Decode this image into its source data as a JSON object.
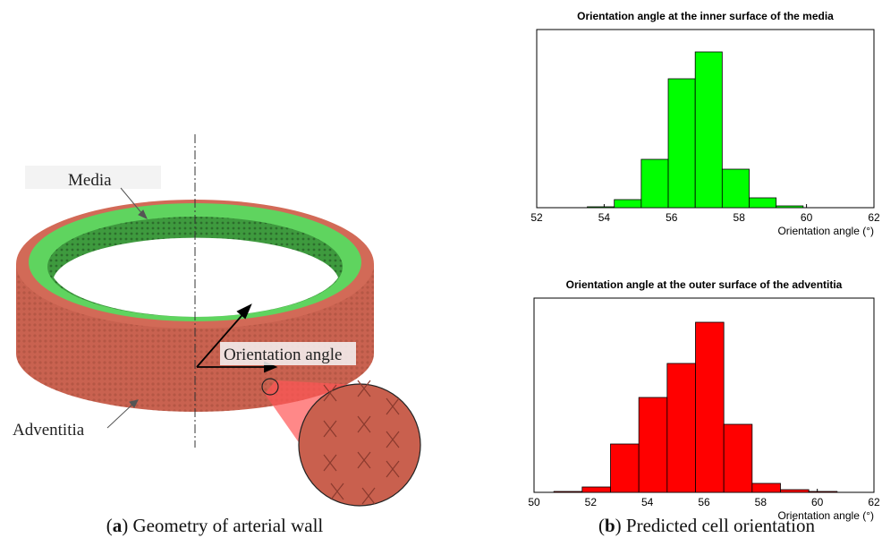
{
  "chart_data": [
    {
      "type": "histogram",
      "title": "Orientation angle at the inner surface of the media",
      "xlabel": "Orientation angle (°)",
      "bins": [
        53.5,
        54.3,
        55.1,
        55.9,
        56.7,
        57.5,
        58.3,
        59.1,
        59.9
      ],
      "values": [
        1,
        9,
        54,
        144,
        174,
        43,
        11,
        2
      ],
      "color": "#00ff00",
      "xlim": [
        52,
        62
      ],
      "xticks": [
        52,
        54,
        56,
        58,
        60,
        62
      ],
      "ylim": [
        0,
        199
      ]
    },
    {
      "type": "histogram",
      "title": "Orientation angle at the outer surface of the adventitia",
      "xlabel": "Orientation angle (°)",
      "bins": [
        50.7,
        51.7,
        52.7,
        53.7,
        54.7,
        55.7,
        56.7,
        57.7,
        58.7,
        59.7,
        60.7
      ],
      "values": [
        1,
        6,
        54,
        106,
        144,
        190,
        76,
        10,
        3,
        1
      ],
      "color": "#ff0000",
      "xlim": [
        50,
        62
      ],
      "xticks": [
        50,
        52,
        54,
        56,
        58,
        60,
        62
      ],
      "ylim": [
        0,
        217
      ]
    }
  ],
  "annotations": {
    "media": "Media",
    "orientation": "Orientation angle",
    "adventitia": "Adventitia"
  },
  "captions": [
    [
      "(",
      "a",
      ") Geometry of arterial wall"
    ],
    [
      "(",
      "b",
      ") Predicted cell orientation"
    ]
  ]
}
